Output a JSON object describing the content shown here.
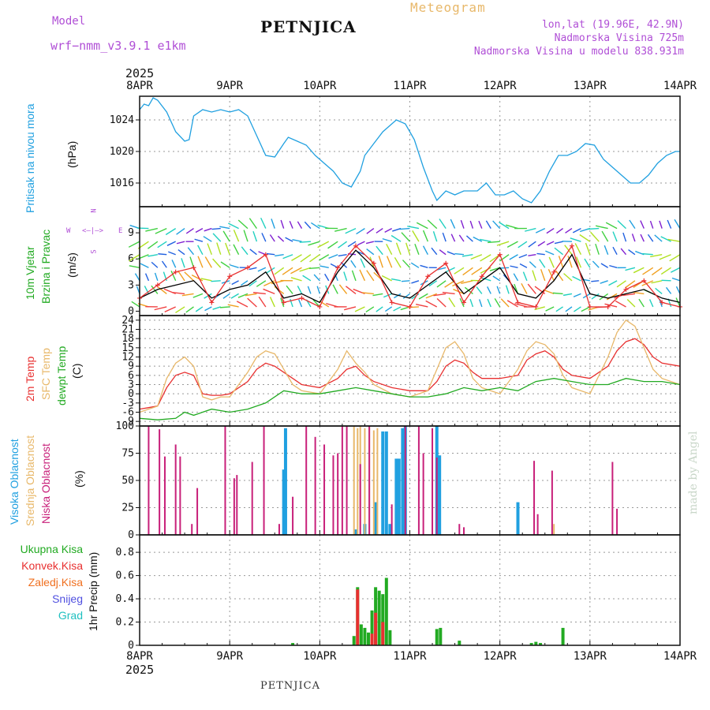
{
  "header": {
    "model_label": "Model",
    "model_name": "wrf−nmm_v3.9.1  e1km",
    "station": "PETNJICA",
    "product": "Meteogram",
    "lonlat": "lon,lat (19.96E, 42.9N)",
    "elevation": "Nadmorska Visina 725m",
    "model_elevation": "Nadmorska Visina u modelu 838.931m",
    "year_top": "2025",
    "year_bottom": "2025",
    "footer_station": "PETNJICA",
    "credit": "made by Angel",
    "colors": {
      "purple": "#b04fd6",
      "gold": "#e8b86a",
      "blue": "#20a0e0",
      "red": "#e83030",
      "green": "#22aa22",
      "orange": "#f07020",
      "pink": "#c8207a",
      "grey": "#bbbbbb"
    }
  },
  "x_axis": {
    "dates": [
      "8APR",
      "9APR",
      "10APR",
      "11APR",
      "12APR",
      "13APR",
      "14APR"
    ]
  },
  "panels": {
    "pressure": {
      "label": "Pritisak na nivou mora",
      "unit": "(hPa)"
    },
    "wind": {
      "label_line1": "10m Vjetar",
      "label_line2": "Brzina i Pravac",
      "unit": "(m/s)",
      "compass": {
        "n": "N",
        "s": "S",
        "e": "E",
        "w": "W"
      }
    },
    "temp": {
      "label_2m": "2m Temp",
      "label_sfc": "SFC Temp",
      "label_dew": "dewpt Temp",
      "unit": "(C)"
    },
    "cloud": {
      "label_high": "Visoka Oblacnost",
      "label_mid": "Srednja Oblacnost",
      "label_low": "Niska Oblacnost",
      "unit": "(%)"
    },
    "precip": {
      "legend": [
        "Ukupna Kisa",
        "Konvek.Kisa",
        "Zaledj.Kisa",
        "Snijeg",
        "Grad"
      ],
      "unit": "1hr Precip (mm)"
    }
  },
  "chart_data": [
    {
      "type": "line",
      "title": "Pritisak na nivou mora",
      "ylabel": "(hPa)",
      "x_unit": "day offset from 8APR 2025 00",
      "ylim": [
        1013,
        1027
      ],
      "yticks": [
        1016,
        1020,
        1024
      ],
      "series": [
        {
          "name": "Pritisak na nivou mora",
          "color": "#20a0e0",
          "x": [
            0,
            0.05,
            0.1,
            0.15,
            0.2,
            0.3,
            0.4,
            0.5,
            0.55,
            0.6,
            0.7,
            0.8,
            0.9,
            1.0,
            1.1,
            1.2,
            1.3,
            1.4,
            1.5,
            1.6,
            1.65,
            1.75,
            1.85,
            1.95,
            2.05,
            2.15,
            2.25,
            2.35,
            2.45,
            2.5,
            2.6,
            2.7,
            2.75,
            2.85,
            2.95,
            3.05,
            3.15,
            3.25,
            3.3,
            3.4,
            3.5,
            3.6,
            3.65,
            3.75,
            3.85,
            3.95,
            4.05,
            4.15,
            4.25,
            4.35,
            4.45,
            4.55,
            4.65,
            4.75,
            4.85,
            4.95,
            5.05,
            5.15,
            5.25,
            5.35,
            5.45,
            5.55,
            5.65,
            5.75,
            5.85,
            5.95,
            6.0
          ],
          "y": [
            1025.3,
            1026.0,
            1025.8,
            1026.8,
            1026.5,
            1025.0,
            1022.5,
            1021.3,
            1021.5,
            1024.5,
            1025.3,
            1025.0,
            1025.3,
            1025.0,
            1025.3,
            1024.5,
            1022.0,
            1019.5,
            1019.3,
            1021.0,
            1021.8,
            1021.3,
            1020.8,
            1019.5,
            1018.5,
            1017.5,
            1016.0,
            1015.5,
            1017.5,
            1019.5,
            1021.0,
            1022.5,
            1023.0,
            1024.0,
            1023.5,
            1021.5,
            1018.0,
            1015.0,
            1013.8,
            1015.0,
            1014.5,
            1015.0,
            1015.0,
            1015.0,
            1016.0,
            1014.5,
            1014.5,
            1015.0,
            1014.0,
            1013.5,
            1015.0,
            1017.5,
            1019.5,
            1019.5,
            1020.0,
            1021.0,
            1020.8,
            1019.0,
            1018.0,
            1017.0,
            1016.0,
            1016.0,
            1017.0,
            1018.5,
            1019.5,
            1020.0,
            1020.0
          ]
        }
      ]
    },
    {
      "type": "line",
      "title": "10m Vjetar Brzina i Pravac",
      "ylabel": "(m/s)",
      "x_unit": "day offset from 8APR 2025 00",
      "ylim": [
        -0.5,
        12
      ],
      "yticks": [
        0,
        3,
        6,
        9
      ],
      "series": [
        {
          "name": "speed",
          "color": "#000000",
          "x": [
            0,
            0.2,
            0.4,
            0.6,
            0.8,
            1.0,
            1.2,
            1.4,
            1.6,
            1.8,
            2.0,
            2.2,
            2.4,
            2.6,
            2.8,
            3.0,
            3.2,
            3.4,
            3.6,
            3.8,
            4.0,
            4.2,
            4.4,
            4.6,
            4.8,
            5.0,
            5.2,
            5.4,
            5.6,
            5.8,
            6.0
          ],
          "y": [
            1.5,
            2.5,
            3.0,
            3.5,
            1.5,
            2.5,
            3.0,
            4.5,
            1.5,
            2.0,
            1.0,
            4.5,
            7.0,
            5.0,
            2.0,
            1.5,
            3.0,
            4.5,
            2.0,
            3.5,
            5.0,
            2.0,
            1.5,
            3.5,
            6.5,
            2.0,
            1.5,
            2.0,
            2.5,
            1.5,
            1.0
          ]
        },
        {
          "name": "gust",
          "color": "#e83030",
          "x": [
            0,
            0.2,
            0.4,
            0.6,
            0.8,
            1.0,
            1.2,
            1.4,
            1.6,
            1.8,
            2.0,
            2.2,
            2.4,
            2.6,
            2.8,
            3.0,
            3.2,
            3.4,
            3.6,
            3.8,
            4.0,
            4.2,
            4.4,
            4.6,
            4.8,
            5.0,
            5.2,
            5.4,
            5.6,
            5.8,
            6.0
          ],
          "y": [
            1.5,
            3.0,
            4.5,
            5.0,
            1.0,
            4.0,
            5.0,
            6.5,
            1.0,
            1.5,
            0.5,
            5.0,
            7.5,
            5.5,
            1.0,
            0.5,
            4.0,
            5.5,
            1.0,
            4.0,
            6.5,
            1.0,
            0.5,
            4.5,
            7.5,
            0.5,
            0.5,
            2.5,
            3.5,
            1.0,
            0.5
          ]
        }
      ]
    },
    {
      "type": "line",
      "title": "Temperature",
      "ylabel": "(C)",
      "x_unit": "day offset from 8APR 2025 00",
      "ylim": [
        -10.5,
        25.5
      ],
      "yticks": [
        -9,
        -6,
        -3,
        0,
        3,
        6,
        9,
        12,
        15,
        18,
        21,
        24
      ],
      "series": [
        {
          "name": "2m Temp",
          "color": "#e83030",
          "x": [
            0,
            0.1,
            0.2,
            0.3,
            0.4,
            0.5,
            0.6,
            0.7,
            0.8,
            0.9,
            1.0,
            1.2,
            1.3,
            1.4,
            1.5,
            1.6,
            1.7,
            1.8,
            2.0,
            2.2,
            2.3,
            2.4,
            2.5,
            2.6,
            2.8,
            3.0,
            3.2,
            3.3,
            3.4,
            3.5,
            3.6,
            3.7,
            3.8,
            4.0,
            4.2,
            4.3,
            4.4,
            4.5,
            4.6,
            4.7,
            4.8,
            5.0,
            5.2,
            5.3,
            5.4,
            5.5,
            5.6,
            5.7,
            5.8,
            6.0
          ],
          "y": [
            -5,
            -4.5,
            -4,
            2,
            6,
            7,
            6,
            0,
            -0.5,
            -0.5,
            0,
            4,
            8,
            10,
            9,
            7,
            5,
            3,
            2,
            5,
            8,
            9,
            6,
            4,
            2,
            1,
            1,
            4,
            9,
            11,
            10,
            7,
            5,
            5,
            6,
            11,
            13,
            14,
            12,
            8,
            6,
            5,
            9,
            14,
            17,
            18,
            16,
            12,
            10,
            9
          ]
        },
        {
          "name": "SFC Temp",
          "color": "#e8b86a",
          "x": [
            0,
            0.1,
            0.2,
            0.3,
            0.4,
            0.5,
            0.6,
            0.7,
            0.8,
            0.9,
            1.0,
            1.2,
            1.3,
            1.4,
            1.5,
            1.6,
            1.7,
            1.8,
            2.0,
            2.2,
            2.3,
            2.4,
            2.5,
            2.6,
            2.8,
            3.0,
            3.2,
            3.3,
            3.4,
            3.5,
            3.6,
            3.7,
            3.8,
            4.0,
            4.2,
            4.3,
            4.4,
            4.5,
            4.6,
            4.7,
            4.8,
            5.0,
            5.2,
            5.3,
            5.4,
            5.5,
            5.6,
            5.7,
            5.8,
            6.0
          ],
          "y": [
            -6,
            -5,
            -4,
            5,
            10,
            12,
            9,
            -1,
            -2,
            -1,
            -1,
            7,
            12,
            14,
            13,
            8,
            3,
            1,
            0,
            8,
            14,
            10,
            7,
            3,
            0,
            -1,
            1,
            8,
            15,
            17,
            13,
            5,
            2,
            0,
            8,
            14,
            17,
            16,
            13,
            6,
            2,
            0,
            12,
            20,
            24,
            22,
            15,
            8,
            5,
            3
          ]
        },
        {
          "name": "dewpt Temp",
          "color": "#22aa22",
          "x": [
            0,
            0.2,
            0.4,
            0.5,
            0.6,
            0.8,
            1.0,
            1.2,
            1.4,
            1.6,
            1.8,
            2.0,
            2.2,
            2.4,
            2.6,
            2.8,
            3.0,
            3.2,
            3.4,
            3.6,
            3.8,
            4.0,
            4.2,
            4.4,
            4.6,
            4.8,
            5.0,
            5.2,
            5.4,
            5.6,
            5.8,
            6.0
          ],
          "y": [
            -8,
            -8.5,
            -8,
            -6,
            -7,
            -5,
            -6,
            -5,
            -3,
            1,
            0,
            0,
            1,
            2,
            1,
            0,
            -1,
            -1,
            0,
            2,
            1,
            2,
            1,
            4,
            5,
            4,
            3,
            3,
            5,
            4,
            4,
            3
          ]
        }
      ]
    },
    {
      "type": "bar",
      "title": "Oblacnost",
      "ylabel": "(%)",
      "x_unit": "day offset from 8APR 2025 00",
      "ylim": [
        0,
        100
      ],
      "yticks": [
        0,
        25,
        50,
        75,
        100
      ],
      "series": [
        {
          "name": "Visoka Oblacnost",
          "color": "#20a0e0",
          "x": [
            1.6,
            1.62,
            2.4,
            2.5,
            2.62,
            2.7,
            2.74,
            2.78,
            2.85,
            2.88,
            2.92,
            2.95,
            3.3,
            3.33,
            4.2
          ],
          "y": [
            60,
            98,
            5,
            10,
            30,
            95,
            95,
            10,
            70,
            70,
            98,
            100,
            100,
            73,
            30
          ]
        },
        {
          "name": "Srednja Oblacnost",
          "color": "#e8b86a",
          "x": [
            2.38,
            2.42,
            2.45,
            2.5,
            2.55,
            2.6,
            2.64,
            4.6
          ],
          "y": [
            100,
            98,
            100,
            98,
            100,
            96,
            98,
            10
          ]
        },
        {
          "name": "Niska Oblacnost",
          "color": "#c8207a",
          "x": [
            0.1,
            0.22,
            0.28,
            0.4,
            0.45,
            0.58,
            0.64,
            0.95,
            1.05,
            1.08,
            1.25,
            1.38,
            1.55,
            1.7,
            1.85,
            1.95,
            2.05,
            2.15,
            2.2,
            2.25,
            2.3,
            2.45,
            2.55,
            2.8,
            2.95,
            3.1,
            3.15,
            3.25,
            3.3,
            3.55,
            3.6,
            4.38,
            4.42,
            4.58,
            5.25,
            5.3
          ],
          "y": [
            100,
            97,
            72,
            83,
            72,
            10,
            43,
            100,
            52,
            55,
            67,
            100,
            10,
            35,
            100,
            90,
            83,
            73,
            75,
            100,
            100,
            65,
            100,
            28,
            100,
            100,
            75,
            98,
            71,
            10,
            7,
            68,
            19,
            59,
            67,
            24
          ]
        }
      ]
    },
    {
      "type": "bar",
      "title": "1hr Precip",
      "ylabel": "1hr Precip (mm)",
      "x_unit": "day offset from 8APR 2025 00",
      "ylim": [
        0,
        0.95
      ],
      "yticks": [
        0,
        0.2,
        0.4,
        0.6,
        0.8
      ],
      "series": [
        {
          "name": "Ukupna Kisa",
          "color": "#22aa22",
          "x": [
            1.7,
            2.38,
            2.42,
            2.46,
            2.5,
            2.54,
            2.58,
            2.62,
            2.66,
            2.7,
            2.74,
            2.78,
            3.3,
            3.34,
            3.55,
            4.35,
            4.4,
            4.45,
            4.7
          ],
          "y": [
            0.02,
            0.08,
            0.5,
            0.18,
            0.15,
            0.11,
            0.3,
            0.5,
            0.47,
            0.44,
            0.58,
            0.13,
            0.14,
            0.15,
            0.04,
            0.02,
            0.03,
            0.02,
            0.15
          ]
        },
        {
          "name": "Konvek.Kisa",
          "color": "#e83030",
          "x": [
            2.42,
            2.58,
            2.62,
            2.7
          ],
          "y": [
            0.48,
            0.1,
            0.28,
            0.2
          ]
        }
      ]
    }
  ]
}
